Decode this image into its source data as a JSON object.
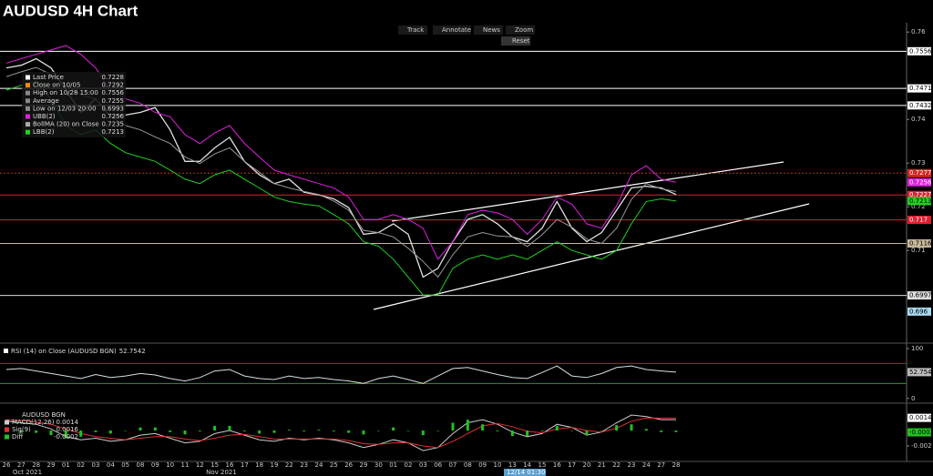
{
  "toolbar": [
    "Track",
    "Annotate",
    "News",
    "Zoom",
    "Reset"
  ],
  "chart_data": [
    {
      "type": "line",
      "title": "AUDUSD 4H Chart",
      "categories": [
        "26",
        "27",
        "28",
        "29",
        "01",
        "02",
        "03",
        "04",
        "05",
        "08",
        "09",
        "10",
        "11",
        "12",
        "15",
        "16",
        "17",
        "18",
        "19",
        "22",
        "23",
        "24",
        "25",
        "26",
        "29",
        "30",
        "01",
        "02",
        "03",
        "06",
        "07",
        "08",
        "09",
        "10",
        "13",
        "14",
        "15",
        "16",
        "17",
        "20",
        "21",
        "22",
        "23",
        "24",
        "27",
        "28"
      ],
      "months": [
        "Oct 2021",
        "Nov 2021"
      ],
      "cursor_label": "12/14 01:30",
      "ylim": [
        0.6892,
        0.7615
      ],
      "yticks": [
        0.76,
        0.74,
        0.73,
        0.72,
        0.71
      ],
      "series": [
        {
          "color": "#e0e0e0",
          "values": [
            0.7518,
            0.7524,
            0.7539,
            0.7518,
            0.7467,
            0.7416,
            0.7447,
            0.7406,
            0.741,
            0.7416,
            0.7427,
            0.7376,
            0.7304,
            0.7304,
            0.7335,
            0.7359,
            0.7304,
            0.7273,
            0.7253,
            0.7263,
            0.7233,
            0.7227,
            0.7218,
            0.7198,
            0.7137,
            0.7141,
            0.7161,
            0.7137,
            0.7039,
            0.7059,
            0.712,
            0.7171,
            0.7182,
            0.7161,
            0.7131,
            0.712,
            0.7151,
            0.7212,
            0.7151,
            0.712,
            0.7141,
            0.7192,
            0.7243,
            0.7247,
            0.7243,
            0.7228
          ]
        },
        {
          "color": "#e020e0",
          "values": [
            0.7529,
            0.7539,
            0.7549,
            0.7559,
            0.7569,
            0.7549,
            0.7518,
            0.7467,
            0.7447,
            0.7437,
            0.7416,
            0.7406,
            0.7365,
            0.7345,
            0.7369,
            0.7386,
            0.7345,
            0.7314,
            0.7284,
            0.7273,
            0.7263,
            0.7253,
            0.7243,
            0.7222,
            0.7171,
            0.7171,
            0.7182,
            0.7171,
            0.7151,
            0.708,
            0.712,
            0.7182,
            0.7192,
            0.7186,
            0.7171,
            0.7137,
            0.7171,
            0.7222,
            0.7206,
            0.7161,
            0.7151,
            0.7202,
            0.7273,
            0.7294,
            0.7263,
            0.7256
          ]
        },
        {
          "color": "#999999",
          "values": [
            0.7498,
            0.7509,
            0.7519,
            0.7503,
            0.7478,
            0.7457,
            0.7447,
            0.7406,
            0.7386,
            0.7376,
            0.736,
            0.7345,
            0.7314,
            0.7299,
            0.7321,
            0.7335,
            0.7304,
            0.7279,
            0.7253,
            0.7243,
            0.7235,
            0.7228,
            0.7213,
            0.7192,
            0.7146,
            0.7141,
            0.7131,
            0.7105,
            0.7075,
            0.7039,
            0.709,
            0.7131,
            0.7141,
            0.7133,
            0.7131,
            0.7109,
            0.7136,
            0.7171,
            0.7153,
            0.7126,
            0.7116,
            0.7151,
            0.7217,
            0.7253,
            0.7241,
            0.7235
          ]
        },
        {
          "color": "#22d022",
          "values": [
            0.7467,
            0.7478,
            0.7488,
            0.7447,
            0.7386,
            0.7365,
            0.7376,
            0.7345,
            0.7324,
            0.7314,
            0.7304,
            0.7284,
            0.7263,
            0.7253,
            0.7273,
            0.7284,
            0.7263,
            0.7243,
            0.7222,
            0.7212,
            0.7206,
            0.7202,
            0.7182,
            0.7161,
            0.712,
            0.711,
            0.708,
            0.7039,
            0.6998,
            0.6998,
            0.7059,
            0.708,
            0.709,
            0.708,
            0.709,
            0.708,
            0.71,
            0.712,
            0.71,
            0.709,
            0.708,
            0.71,
            0.7161,
            0.7212,
            0.7218,
            0.7213
          ]
        }
      ],
      "legend": [
        {
          "label": "Last Price",
          "value": 0.7228,
          "color": "#ffffff"
        },
        {
          "label": "Close on 10/05",
          "value": 0.7292,
          "color": "#f08c00"
        },
        {
          "label": "High on 10/28 15:00",
          "value": 0.7556,
          "color": "#888888"
        },
        {
          "label": "Average",
          "value": 0.7255,
          "color": "#888888"
        },
        {
          "label": "Low on 12/03 20:00",
          "value": 0.6993,
          "color": "#888888"
        },
        {
          "label": "UBB(2)",
          "value": 0.7256,
          "color": "#e020e0"
        },
        {
          "label": "BollMA (20)  on Close",
          "value": 0.7235,
          "color": "#aaaaaa"
        },
        {
          "label": "LBB(2)",
          "value": 0.7213,
          "color": "#22d022"
        }
      ],
      "levels": [
        {
          "value": 0.7556,
          "color": "#ffffff",
          "label_color": "#000000",
          "style": "solid"
        },
        {
          "value": 0.7471,
          "color": "#ffffff",
          "label_color": "#000000",
          "style": "solid"
        },
        {
          "value": 0.7432,
          "color": "#ffffff",
          "label_color": "#000000",
          "style": "solid"
        },
        {
          "value": 0.7277,
          "color": "#e02020",
          "label_color": "#ffffff",
          "style": "dotted"
        },
        {
          "value": 0.7256,
          "color": "#e020e0",
          "label_color": "#ffffff",
          "style": "none"
        },
        {
          "value": 0.7227,
          "color": "#e02030",
          "label_color": "#ffffff",
          "style": "solid"
        },
        {
          "value": 0.7213,
          "color": "#22d022",
          "label_color": "#000000",
          "style": "none"
        },
        {
          "value": 0.717,
          "color": "#e02030",
          "label_color": "#ffffff",
          "style": "solid"
        },
        {
          "value": 0.7116,
          "color": "#c8b89a",
          "label_color": "#000000",
          "style": "solid"
        },
        {
          "value": 0.6997,
          "color": "#dddddd",
          "label_color": "#000000",
          "style": "solid"
        },
        {
          "value": 0.696,
          "color": "#a8d8f0",
          "label_color": "#000000",
          "style": "none"
        }
      ]
    },
    {
      "type": "line",
      "title": "RSI (14)  on Close (AUDUSD BGN)",
      "last": 52.7542,
      "ylim": [
        -4,
        109
      ],
      "yticks": [
        0,
        100
      ],
      "thresholds": [
        {
          "value": 70,
          "color": "#c02020"
        },
        {
          "value": 30,
          "color": "#20a020"
        }
      ],
      "series": [
        {
          "color": "#dddddd",
          "values": [
            58,
            60,
            55,
            50,
            45,
            40,
            48,
            42,
            45,
            50,
            47,
            40,
            35,
            42,
            55,
            58,
            45,
            40,
            38,
            45,
            40,
            42,
            38,
            35,
            30,
            40,
            45,
            38,
            30,
            45,
            60,
            62,
            55,
            48,
            42,
            40,
            52,
            65,
            45,
            42,
            50,
            62,
            65,
            58,
            55,
            52.7542
          ]
        }
      ]
    },
    {
      "type": "line",
      "title": "AUDUSD BGN",
      "ylim": [
        -0.00376,
        0.00306
      ],
      "yticks": [
        -0.002
      ],
      "series": [
        {
          "name": "MACD(12,26)",
          "last": 0.0014,
          "color": "#cccccc",
          "style": "line",
          "values": [
            0.0012,
            0.001,
            0.0008,
            0.0002,
            -0.0008,
            -0.0012,
            -0.001,
            -0.0014,
            -0.0012,
            -0.0006,
            -0.0004,
            -0.001,
            -0.0016,
            -0.0014,
            -0.0004,
            0,
            -0.0006,
            -0.0012,
            -0.0014,
            -0.001,
            -0.0012,
            -0.001,
            -0.0012,
            -0.0016,
            -0.0022,
            -0.0018,
            -0.0012,
            -0.0016,
            -0.0026,
            -0.0022,
            -0.0004,
            0.001,
            0.0014,
            0.0008,
            -0.0002,
            -0.0008,
            -0.0004,
            0.0008,
            0.0004,
            -0.0006,
            -0.0002,
            0.001,
            0.002,
            0.0018,
            0.0014,
            0.0014
          ]
        },
        {
          "name": "Sig(9)",
          "last": 0.0016,
          "color": "#e03030",
          "style": "line",
          "values": [
            0.0014,
            0.0013,
            0.0011,
            0.0008,
            0.0002,
            -0.0004,
            -0.0008,
            -0.001,
            -0.0012,
            -0.001,
            -0.0008,
            -0.0008,
            -0.0011,
            -0.0013,
            -0.001,
            -0.0006,
            -0.0005,
            -0.0008,
            -0.0011,
            -0.0011,
            -0.0011,
            -0.0011,
            -0.0011,
            -0.0013,
            -0.0017,
            -0.0018,
            -0.0016,
            -0.0016,
            -0.002,
            -0.0022,
            -0.0014,
            -0.0004,
            0.0006,
            0.0009,
            0.0005,
            -0.0001,
            -0.0003,
            0.0002,
            0.0004,
            0,
            -0.0002,
            0.0003,
            0.0012,
            0.0016,
            0.0016,
            0.0016
          ]
        },
        {
          "name": "Diff",
          "last": -0.0002,
          "color": "#22c022",
          "style": "bar",
          "values": [
            -0.0002,
            -0.0003,
            -0.0003,
            -0.0006,
            -0.001,
            -0.0008,
            -0.0002,
            -0.0004,
            0,
            0.0004,
            0.0004,
            -0.0002,
            -0.0005,
            -0.0001,
            0.0006,
            0.0006,
            -0.0001,
            -0.0004,
            -0.0003,
            0.0001,
            -0.0001,
            0.0001,
            -0.0001,
            -0.0003,
            -0.0005,
            0,
            0.0004,
            0,
            -0.0006,
            0,
            0.001,
            0.0014,
            0.0008,
            -0.0001,
            -0.0007,
            -0.0007,
            -0.0001,
            0.0006,
            0,
            -0.0006,
            0,
            0.0007,
            0.0008,
            0.0002,
            -0.0002,
            -0.0002
          ]
        }
      ]
    }
  ]
}
